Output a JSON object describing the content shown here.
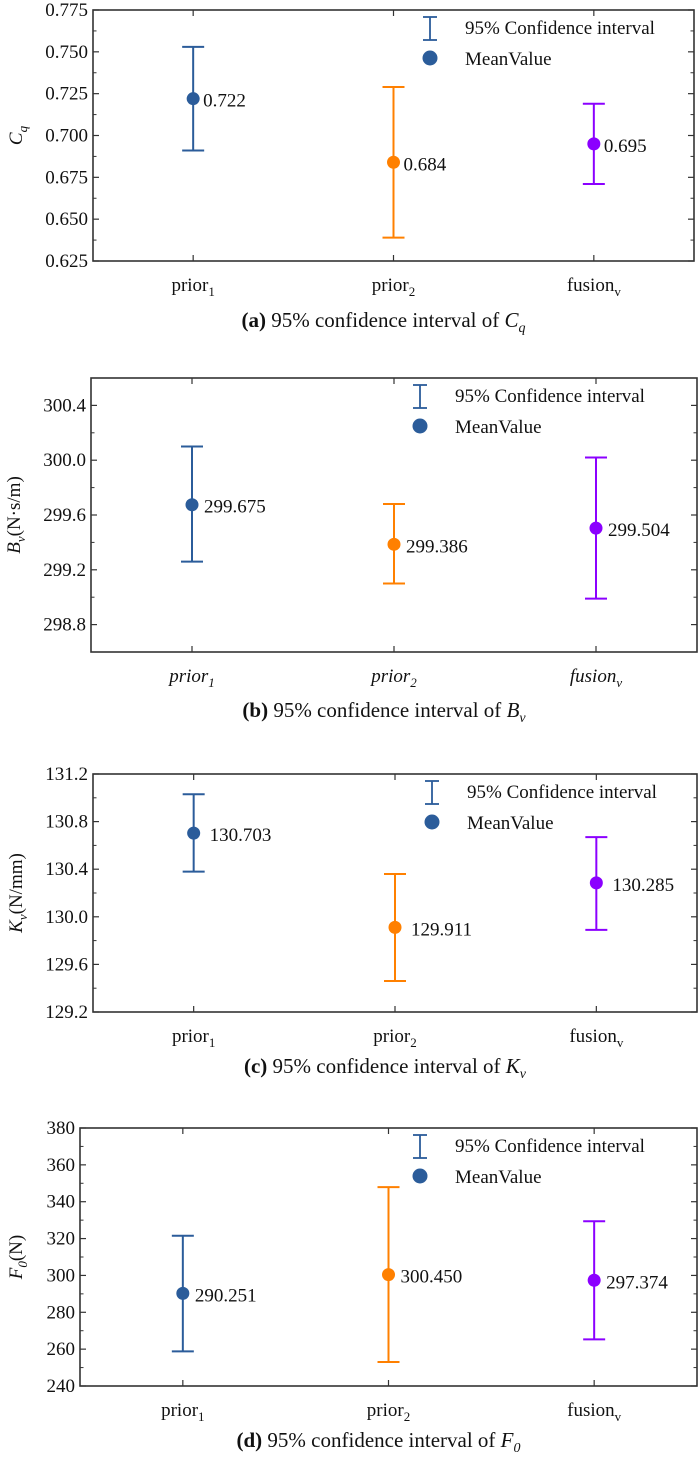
{
  "chart_data": [
    {
      "type": "errorbar",
      "panel": "a",
      "caption_prefix": "(a)",
      "caption_text": " 95% confidence interval of ",
      "caption_symbol": "C",
      "caption_sub": "q",
      "ylabel_symbol": "C",
      "ylabel_sub": "q",
      "ylabel_unit": "",
      "ylim": [
        0.625,
        0.775
      ],
      "yticks": [
        0.625,
        0.65,
        0.675,
        0.7,
        0.725,
        0.75,
        0.775
      ],
      "ytick_labels": [
        "0.625",
        "0.650",
        "0.675",
        "0.700",
        "0.725",
        "0.750",
        "0.775"
      ],
      "yminor": true,
      "italic_categories": false,
      "categories": [
        {
          "base": "prior",
          "sub": "1"
        },
        {
          "base": "prior",
          "sub": "2"
        },
        {
          "base": "fusion",
          "sub": "v"
        }
      ],
      "series": [
        {
          "name": "prior1",
          "mean": 0.722,
          "label": "0.722",
          "lower": 0.691,
          "upper": 0.753,
          "color": "#2B5C9A"
        },
        {
          "name": "prior2",
          "mean": 0.684,
          "label": "0.684",
          "lower": 0.639,
          "upper": 0.729,
          "color": "#FF8000"
        },
        {
          "name": "fusionv",
          "mean": 0.695,
          "label": "0.695",
          "lower": 0.671,
          "upper": 0.719,
          "color": "#8B00FF"
        }
      ],
      "legend": {
        "position": "top-right",
        "items": [
          "95% Confidence interval",
          "MeanValue"
        ],
        "color": "#2B5C9A"
      }
    },
    {
      "type": "errorbar",
      "panel": "b",
      "caption_prefix": "(b)",
      "caption_text": " 95% confidence interval of ",
      "caption_symbol": "B",
      "caption_sub": "v",
      "ylabel_symbol": "B",
      "ylabel_sub": "v",
      "ylabel_unit": "(N·s/m)",
      "ylim": [
        298.6,
        300.6
      ],
      "yticks": [
        298.8,
        299.2,
        299.6,
        300.0,
        300.4
      ],
      "ytick_labels": [
        "298.8",
        "299.2",
        "299.6",
        "300.0",
        "300.4"
      ],
      "yminor": true,
      "italic_categories": true,
      "categories": [
        {
          "base": "prior",
          "sub": "1"
        },
        {
          "base": "prior",
          "sub": "2"
        },
        {
          "base": "fusion",
          "sub": "v"
        }
      ],
      "series": [
        {
          "name": "prior1",
          "mean": 299.675,
          "label": "299.675",
          "lower": 299.26,
          "upper": 300.1,
          "color": "#2B5C9A"
        },
        {
          "name": "prior2",
          "mean": 299.386,
          "label": "299.386",
          "lower": 299.1,
          "upper": 299.68,
          "color": "#FF8000"
        },
        {
          "name": "fusionv",
          "mean": 299.504,
          "label": "299.504",
          "lower": 298.99,
          "upper": 300.02,
          "color": "#8B00FF"
        }
      ],
      "legend": {
        "position": "top-right",
        "items": [
          "95% Confidence interval",
          "MeanValue"
        ],
        "color": "#2B5C9A"
      }
    },
    {
      "type": "errorbar",
      "panel": "c",
      "caption_prefix": "(c)",
      "caption_text": " 95% confidence interval of ",
      "caption_symbol": "K",
      "caption_sub": "v",
      "ylabel_symbol": "K",
      "ylabel_sub": "v",
      "ylabel_unit": "(N/mm)",
      "ylim": [
        129.2,
        131.2
      ],
      "yticks": [
        129.2,
        129.6,
        130.0,
        130.4,
        130.8,
        131.2
      ],
      "ytick_labels": [
        "129.2",
        "129.6",
        "130.0",
        "130.4",
        "130.8",
        "131.2"
      ],
      "yminor": true,
      "italic_categories": false,
      "categories": [
        {
          "base": "prior",
          "sub": "1"
        },
        {
          "base": "prior",
          "sub": "2"
        },
        {
          "base": "fusion",
          "sub": "v"
        }
      ],
      "series": [
        {
          "name": "prior1",
          "mean": 130.703,
          "label": "130.703",
          "lower": 130.38,
          "upper": 131.03,
          "color": "#2B5C9A"
        },
        {
          "name": "prior2",
          "mean": 129.911,
          "label": "129.911",
          "lower": 129.46,
          "upper": 130.36,
          "color": "#FF8000"
        },
        {
          "name": "fusionv",
          "mean": 130.285,
          "label": "130.285",
          "lower": 129.89,
          "upper": 130.67,
          "color": "#8B00FF"
        }
      ],
      "legend": {
        "position": "top-right",
        "items": [
          "95% Confidence interval",
          "MeanValue"
        ],
        "color": "#2B5C9A"
      }
    },
    {
      "type": "errorbar",
      "panel": "d",
      "caption_prefix": "(d)",
      "caption_text": " 95% confidence interval of ",
      "caption_symbol": "F",
      "caption_sub": "0",
      "ylabel_symbol": "F",
      "ylabel_sub": "0",
      "ylabel_unit": "(N)",
      "ylim": [
        240,
        380
      ],
      "yticks": [
        240,
        260,
        280,
        300,
        320,
        340,
        360,
        380
      ],
      "ytick_labels": [
        "240",
        "260",
        "280",
        "300",
        "320",
        "340",
        "360",
        "380"
      ],
      "yminor": true,
      "italic_categories": false,
      "categories": [
        {
          "base": "prior",
          "sub": "1"
        },
        {
          "base": "prior",
          "sub": "2"
        },
        {
          "base": "fusion",
          "sub": "v"
        }
      ],
      "series": [
        {
          "name": "prior1",
          "mean": 290.251,
          "label": "290.251",
          "lower": 258.8,
          "upper": 321.5,
          "color": "#2B5C9A"
        },
        {
          "name": "prior2",
          "mean": 300.45,
          "label": "300.450",
          "lower": 253.0,
          "upper": 347.9,
          "color": "#FF8000"
        },
        {
          "name": "fusionv",
          "mean": 297.374,
          "label": "297.374",
          "lower": 265.3,
          "upper": 329.4,
          "color": "#8B00FF"
        }
      ],
      "legend": {
        "position": "top-right",
        "items": [
          "95% Confidence interval",
          "MeanValue"
        ],
        "color": "#2B5C9A"
      }
    }
  ]
}
